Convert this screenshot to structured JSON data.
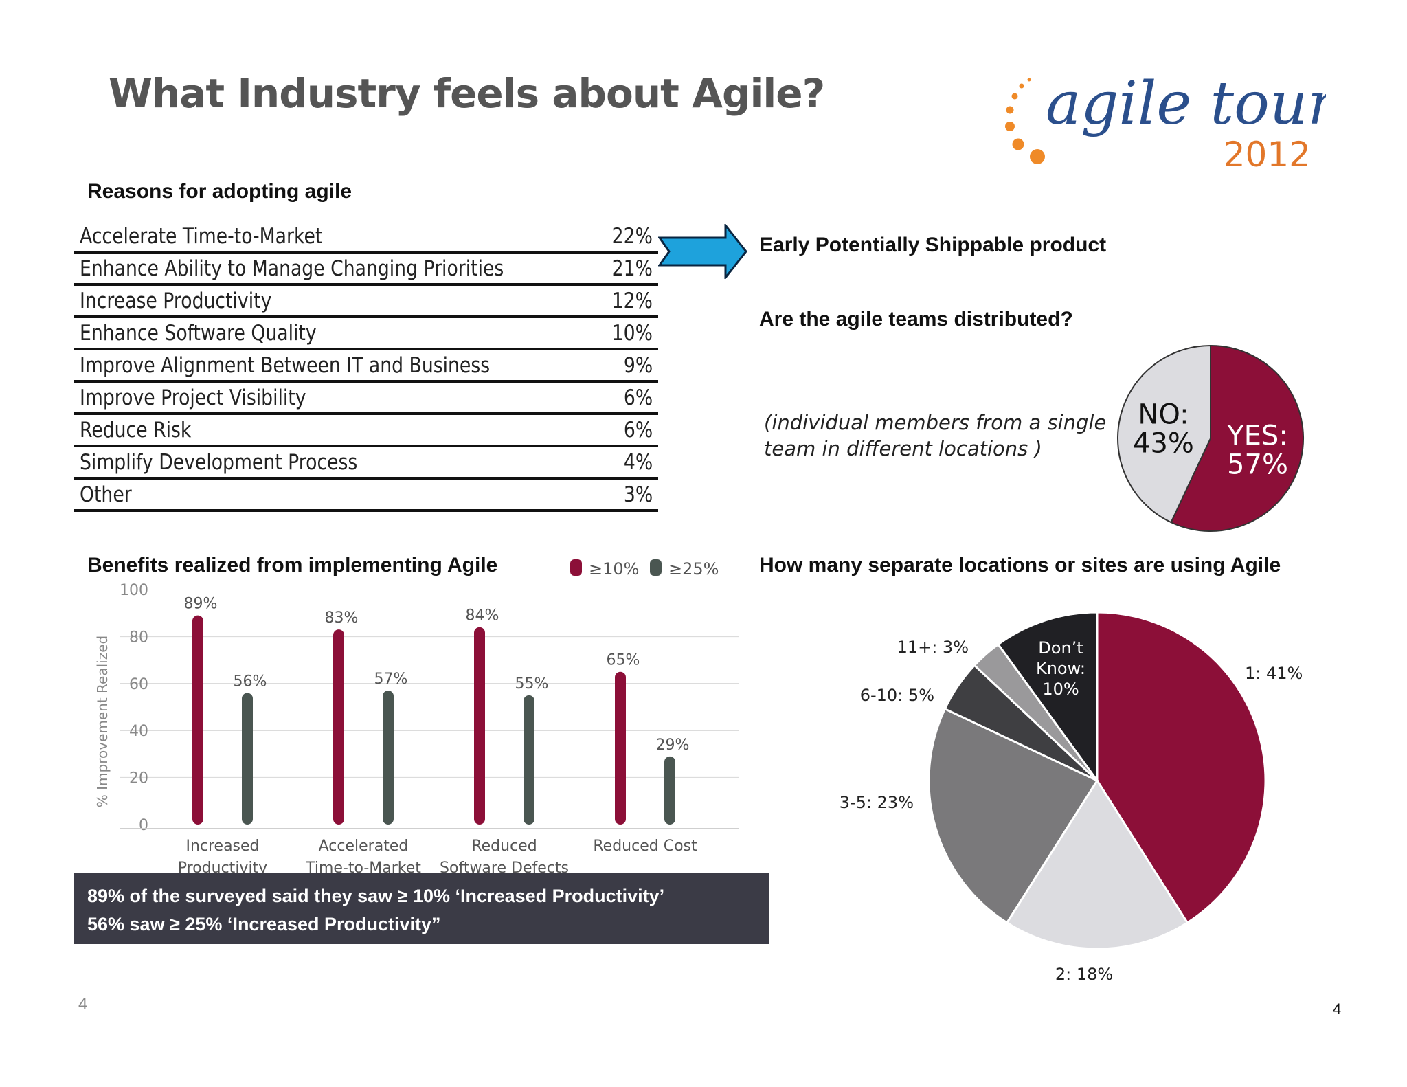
{
  "slide": {
    "title": "What Industry feels about Agile?",
    "logo": {
      "word": "agile tour",
      "year": "2012",
      "colors": {
        "word": "#2b4f8c",
        "year": "#e2772a",
        "dots": "#ef8a28"
      }
    },
    "page_number_left": "4",
    "page_number_right": "4"
  },
  "reasons": {
    "heading": "Reasons for adopting agile",
    "rows": [
      {
        "label": "Accelerate Time-to-Market",
        "value": "22%"
      },
      {
        "label": "Enhance Ability to Manage Changing Priorities",
        "value": "21%"
      },
      {
        "label": "Increase Productivity",
        "value": "12%"
      },
      {
        "label": "Enhance Software Quality",
        "value": "10%"
      },
      {
        "label": "Improve Alignment Between IT and Business",
        "value": "9%"
      },
      {
        "label": "Improve Project Visibility",
        "value": "6%"
      },
      {
        "label": "Reduce Risk",
        "value": "6%"
      },
      {
        "label": "Simplify Development Process",
        "value": "4%"
      },
      {
        "label": "Other",
        "value": "3%"
      }
    ]
  },
  "callout": {
    "text": "Early Potentially Shippable product",
    "arrow_color": "#1ea2dc"
  },
  "distributed": {
    "heading": "Are the agile teams distributed?",
    "note_line1": "(individual members from a single",
    "note_line2": "team in different locations )"
  },
  "benefits": {
    "heading": "Benefits realized from implementing Agile"
  },
  "locations": {
    "heading": "How many separate locations or sites are using Agile"
  },
  "caption": {
    "line1": "89% of the surveyed said they saw ≥ 10% ‘Increased Productivity’",
    "line2": "56% saw ≥ 25% ‘Increased Productivity”"
  },
  "colors": {
    "crimson": "#8c0f38",
    "slate": "#4a5651",
    "light_gray": "#dcdce0",
    "mid_gray": "#7a797b",
    "dark_gray": "#3f3f42",
    "gray": "#9a999b",
    "black": "#202024"
  },
  "chart_data": [
    {
      "type": "pie",
      "slices": [
        {
          "label": "YES:",
          "value": 57,
          "value_text": "57%",
          "color": "#8c0f38"
        },
        {
          "label": "NO:",
          "value": 43,
          "value_text": "43%",
          "color": "#dcdce0"
        }
      ]
    },
    {
      "type": "bar",
      "ylabel": "% Improvement Realized",
      "ylim": [
        0,
        100
      ],
      "yticks": [
        "0",
        "20",
        "40",
        "60",
        "80",
        "100"
      ],
      "categories": [
        [
          "Increased",
          "Productivity"
        ],
        [
          "Accelerated",
          "Time-to-Market"
        ],
        [
          "Reduced",
          "Software Defects"
        ],
        [
          "Reduced Cost"
        ]
      ],
      "series": [
        {
          "name": "≥10%",
          "color": "#8c0f38",
          "values": [
            89,
            83,
            84,
            65
          ],
          "labels": [
            "89%",
            "83%",
            "84%",
            "65%"
          ]
        },
        {
          "name": "≥25%",
          "color": "#4a5651",
          "values": [
            56,
            57,
            55,
            29
          ],
          "labels": [
            "56%",
            "57%",
            "55%",
            "29%"
          ]
        }
      ],
      "legend": "top-right",
      "grid": true
    },
    {
      "type": "pie",
      "slices": [
        {
          "label": "1: 41%",
          "value": 41,
          "color": "#8c0f38"
        },
        {
          "label": "2: 18%",
          "value": 18,
          "color": "#dcdce0"
        },
        {
          "label": "3-5: 23%",
          "value": 23,
          "color": "#7a797b"
        },
        {
          "label": "6-10: 5%",
          "value": 5,
          "color": "#3f3f42"
        },
        {
          "label": "11+: 3%",
          "value": 3,
          "color": "#9a999b"
        },
        {
          "label": "Don’t Know: 10%",
          "inside": [
            "Don’t",
            "Know:",
            "10%"
          ],
          "value": 10,
          "color": "#202024"
        }
      ]
    }
  ]
}
